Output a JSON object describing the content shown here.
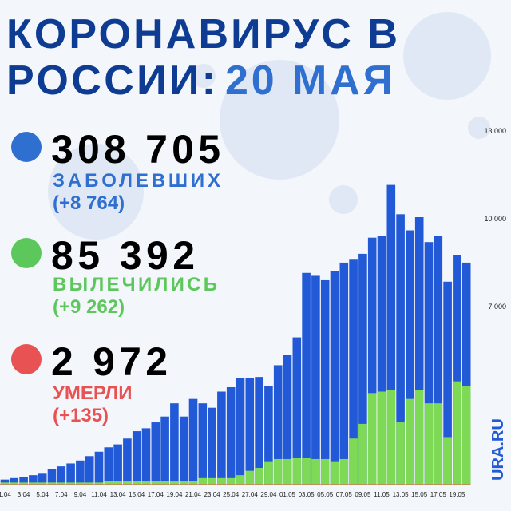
{
  "header": {
    "title_line1": "КОРОНАВИРУС В",
    "title_line2a": "РОССИИ:",
    "title_line2b": "20 МАЯ"
  },
  "stats": [
    {
      "value": "308 705",
      "label": "ЗАБОЛЕВШИХ",
      "change": "(+8 764)"
    },
    {
      "value": "85 392",
      "label": "ВЫЛЕЧИЛИСЬ",
      "change": "(+9 262)"
    },
    {
      "value": "2 972",
      "label": "УМЕРЛИ",
      "change": "(+135)"
    }
  ],
  "brand": "URA.RU",
  "chart_data": {
    "type": "bar",
    "categories": [
      "1.04",
      null,
      "3.04",
      null,
      "5.04",
      null,
      "7.04",
      null,
      "9.04",
      null,
      "11.04",
      null,
      "13.04",
      null,
      "15.04",
      null,
      "17.04",
      null,
      "19.04",
      null,
      "21.04",
      null,
      "23.04",
      null,
      "25.04",
      null,
      "27.04",
      null,
      "29.04",
      null,
      "01.05",
      null,
      "03.05",
      null,
      "05.05",
      null,
      "07.05",
      null,
      "09.05",
      null,
      "11.05",
      null,
      "13.05",
      null,
      "15.05",
      null,
      "17.05",
      null,
      "19.05",
      null
    ],
    "series": [
      {
        "color": "#2259d6",
        "values": [
          1350,
          1400,
          1450,
          1500,
          1550,
          1700,
          1800,
          1900,
          2000,
          2150,
          2300,
          2450,
          2550,
          2750,
          3000,
          3100,
          3300,
          3500,
          3950,
          3500,
          4100,
          3950,
          3800,
          4350,
          4500,
          4800,
          4800,
          4850,
          4550,
          5250,
          5600,
          6200,
          8400,
          8300,
          8150,
          8450,
          8750,
          8850,
          9050,
          9600,
          9650,
          11400,
          10400,
          9850,
          10300,
          9450,
          9650,
          8100,
          9000,
          8750
        ]
      },
      {
        "color": "#7ed957",
        "values": [
          1250,
          1250,
          1250,
          1250,
          1250,
          1250,
          1250,
          1250,
          1250,
          1250,
          1250,
          1300,
          1300,
          1300,
          1300,
          1300,
          1300,
          1300,
          1300,
          1300,
          1300,
          1400,
          1400,
          1400,
          1400,
          1500,
          1650,
          1750,
          1950,
          2050,
          2050,
          2100,
          2100,
          2050,
          2050,
          1950,
          2050,
          2750,
          3250,
          4300,
          4350,
          4400,
          3300,
          4100,
          4400,
          3950,
          3950,
          2800,
          4700,
          4550
        ]
      }
    ],
    "ylim": [
      1150,
      13350
    ],
    "yticks": [
      {
        "value": 7000,
        "label": "7 000"
      },
      {
        "value": 10000,
        "label": "10 000"
      },
      {
        "value": 13000,
        "label": "13 000"
      }
    ]
  }
}
